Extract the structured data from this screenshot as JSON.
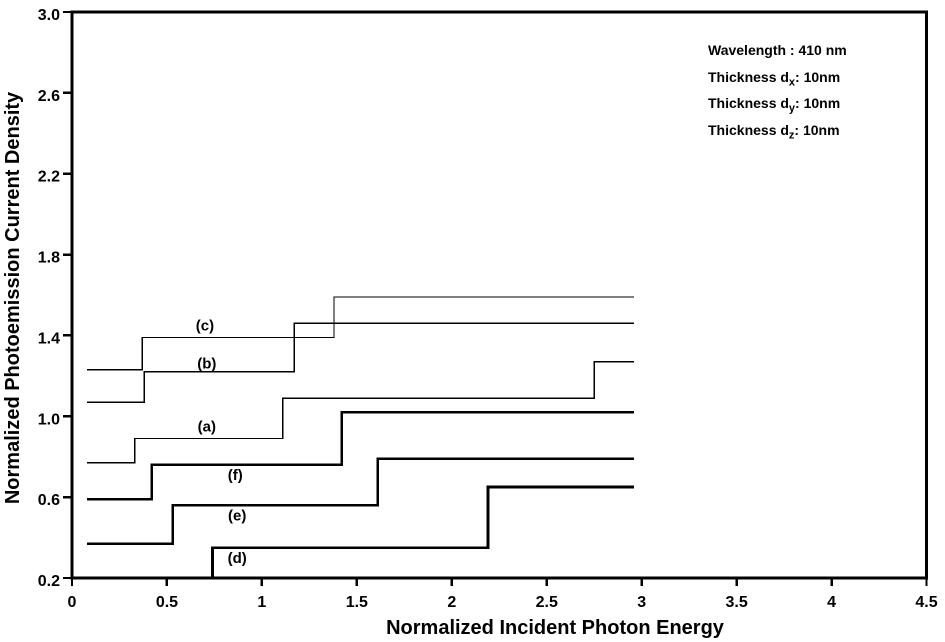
{
  "figure": {
    "background": "#ffffff",
    "line_color": "#000000",
    "frame": true
  },
  "chart_data": {
    "type": "line",
    "step": true,
    "title": "",
    "xlabel": "Normalized Incident Photon Energy",
    "ylabel": "Normalized Photoemission Current Density",
    "xlim": [
      0,
      4.5
    ],
    "ylim": [
      0.2,
      3.0
    ],
    "grid": false,
    "legend": "none",
    "xticks": [
      {
        "v": 0,
        "label": "0"
      },
      {
        "v": 0.5,
        "label": "0.5"
      },
      {
        "v": 1,
        "label": "1"
      },
      {
        "v": 1.5,
        "label": "1.5"
      },
      {
        "v": 2,
        "label": "2"
      },
      {
        "v": 2.5,
        "label": "2.5"
      },
      {
        "v": 3,
        "label": "3"
      },
      {
        "v": 3.5,
        "label": "3.5"
      },
      {
        "v": 4,
        "label": "4"
      },
      {
        "v": 4.5,
        "label": "4.5"
      }
    ],
    "yticks": [
      {
        "v": 0.2,
        "label": "0.2"
      },
      {
        "v": 0.6,
        "label": "0.6"
      },
      {
        "v": 1.0,
        "label": "1.0"
      },
      {
        "v": 1.4,
        "label": "1.4"
      },
      {
        "v": 1.8,
        "label": "1.8"
      },
      {
        "v": 2.2,
        "label": "2.2"
      },
      {
        "v": 2.6,
        "label": "2.6"
      },
      {
        "v": 3.0,
        "label": "3.0"
      }
    ],
    "series": [
      {
        "name": "a",
        "label": "(a)",
        "weight": "thin",
        "label_xy": [
          0.71,
          0.95
        ],
        "points": [
          [
            0.08,
            0.77
          ],
          [
            0.33,
            0.77
          ],
          [
            0.33,
            0.89
          ],
          [
            1.11,
            0.89
          ],
          [
            1.11,
            1.09
          ],
          [
            2.75,
            1.09
          ],
          [
            2.75,
            1.27
          ],
          [
            2.96,
            1.27
          ]
        ]
      },
      {
        "name": "b",
        "label": "(b)",
        "weight": "thin",
        "label_xy": [
          0.71,
          1.26
        ],
        "points": [
          [
            0.08,
            1.07
          ],
          [
            0.38,
            1.07
          ],
          [
            0.38,
            1.22
          ],
          [
            1.17,
            1.22
          ],
          [
            1.17,
            1.46
          ],
          [
            2.96,
            1.46
          ]
        ]
      },
      {
        "name": "c",
        "label": "(c)",
        "weight": "thin",
        "label_xy": [
          0.7,
          1.45
        ],
        "points": [
          [
            0.08,
            1.23
          ],
          [
            0.37,
            1.23
          ],
          [
            0.37,
            1.39
          ],
          [
            1.38,
            1.39
          ],
          [
            1.38,
            1.59
          ],
          [
            2.96,
            1.59
          ]
        ]
      },
      {
        "name": "d",
        "label": "(d)",
        "weight": "thick",
        "label_xy": [
          0.87,
          0.3
        ],
        "points": [
          [
            0.74,
            0.2
          ],
          [
            0.74,
            0.35
          ],
          [
            2.19,
            0.35
          ],
          [
            2.19,
            0.65
          ],
          [
            2.96,
            0.65
          ]
        ]
      },
      {
        "name": "e",
        "label": "(e)",
        "weight": "thick",
        "label_xy": [
          0.87,
          0.51
        ],
        "points": [
          [
            0.08,
            0.37
          ],
          [
            0.53,
            0.37
          ],
          [
            0.53,
            0.56
          ],
          [
            1.61,
            0.56
          ],
          [
            1.61,
            0.79
          ],
          [
            2.96,
            0.79
          ]
        ]
      },
      {
        "name": "f",
        "label": "(f)",
        "weight": "thick",
        "label_xy": [
          0.86,
          0.71
        ],
        "points": [
          [
            0.08,
            0.59
          ],
          [
            0.42,
            0.59
          ],
          [
            0.42,
            0.76
          ],
          [
            1.42,
            0.76
          ],
          [
            1.42,
            1.02
          ],
          [
            2.96,
            1.02
          ]
        ]
      }
    ],
    "annotation": {
      "lines": [
        [
          {
            "t": "Wavelength : 410 nm"
          }
        ],
        [
          {
            "t": "Thickness d"
          },
          {
            "t": "x",
            "sub": true
          },
          {
            "t": ": 10nm"
          }
        ],
        [
          {
            "t": "Thickness d"
          },
          {
            "t": "y",
            "sub": true
          },
          {
            "t": ": 10nm"
          }
        ],
        [
          {
            "t": "Thickness d"
          },
          {
            "t": "z",
            "sub": true
          },
          {
            "t": ": 10nm"
          }
        ]
      ]
    }
  }
}
